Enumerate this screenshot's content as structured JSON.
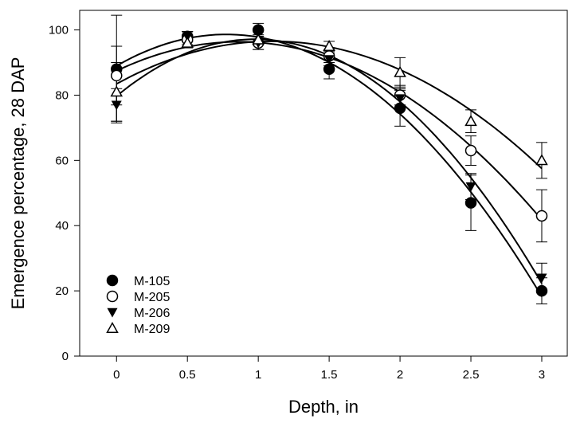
{
  "chart_data": {
    "type": "scatter",
    "title": "",
    "xlabel": "Depth, in",
    "ylabel": "Emergence percentage, 28 DAP",
    "xlim": [
      -0.26,
      3.18
    ],
    "ylim": [
      0,
      106
    ],
    "xticks": [
      0,
      0.5,
      1,
      1.5,
      2,
      2.5,
      3
    ],
    "xtick_labels": [
      "0",
      "0.5",
      "1",
      "1.5",
      "2",
      "2.5",
      "3"
    ],
    "yticks": [
      0,
      20,
      40,
      60,
      80,
      100
    ],
    "ytick_labels": [
      "0",
      "20",
      "40",
      "60",
      "80",
      "100"
    ],
    "grid": false,
    "legend_placement": "bottom-left",
    "fit": "quadratic",
    "x": [
      0,
      0.5,
      1,
      1.5,
      2,
      2.5,
      3
    ],
    "series": [
      {
        "name": "M-105",
        "marker": "filled-circle",
        "values": [
          88,
          98,
          100,
          88,
          76,
          47,
          20
        ],
        "errors": [
          16.5,
          1.5,
          2,
          3,
          5.5,
          8.5,
          4
        ]
      },
      {
        "name": "M-205",
        "marker": "open-circle",
        "values": [
          86,
          97,
          96,
          92,
          80,
          63,
          43
        ],
        "errors": [
          9,
          1.5,
          2,
          2,
          3,
          4.5,
          8
        ]
      },
      {
        "name": "M-206",
        "marker": "filled-triangle-down",
        "values": [
          77,
          98,
          96,
          91,
          79,
          52,
          24
        ],
        "errors": [
          5,
          1.5,
          2,
          2,
          3,
          4,
          4.5
        ]
      },
      {
        "name": "M-209",
        "marker": "open-triangle-up",
        "values": [
          81,
          96,
          97,
          95,
          87,
          72,
          60
        ],
        "errors": [
          9,
          1.5,
          1.5,
          1.5,
          4.5,
          3.5,
          5.5
        ]
      }
    ]
  }
}
